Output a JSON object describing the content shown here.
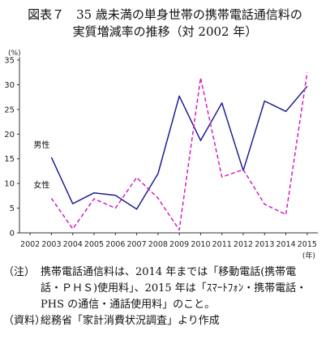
{
  "title_line1": "図表７　35 歳未満の単身世帯の携帯電話通信料の",
  "title_line2": "実質増減率の推移（対 2002 年）",
  "notes": {
    "note_tag": "（注）",
    "note_line1": "携帯電話通信料は、2014 年までは「移動電話(携帯電",
    "note_line2": "話・ＰＨＳ)使用料」、2015 年は「ｽﾏｰﾄﾌｫﾝ・携帯電話・",
    "note_line3": "PHS の通信・通話使用料」のこと。",
    "source_tag": "（資料）",
    "source_text": "総務省「家計消費状況調査」より作成"
  },
  "chart_data": {
    "type": "line",
    "ylabel": "(%)",
    "xlabel": "(年)",
    "ylim": [
      0,
      35
    ],
    "yticks": [
      0,
      5,
      10,
      15,
      20,
      25,
      30,
      35
    ],
    "categories": [
      "2002",
      "2003",
      "2004",
      "2005",
      "2006",
      "2007",
      "2008",
      "2009",
      "2010",
      "2011",
      "2012",
      "2013",
      "2014",
      "2015"
    ],
    "grid": false,
    "series": [
      {
        "name": "男性",
        "color": "#1f1f8f",
        "style": "solid",
        "values": [
          null,
          15.3,
          5.9,
          8.1,
          7.6,
          4.8,
          12.0,
          27.7,
          18.7,
          26.3,
          12.6,
          26.7,
          24.6,
          29.7
        ]
      },
      {
        "name": "女性",
        "color": "#d020c0",
        "style": "dashed",
        "values": [
          null,
          7.0,
          0.8,
          6.9,
          5.0,
          11.2,
          7.0,
          0.6,
          31.4,
          11.3,
          12.8,
          5.8,
          3.7,
          32.5
        ]
      }
    ]
  }
}
